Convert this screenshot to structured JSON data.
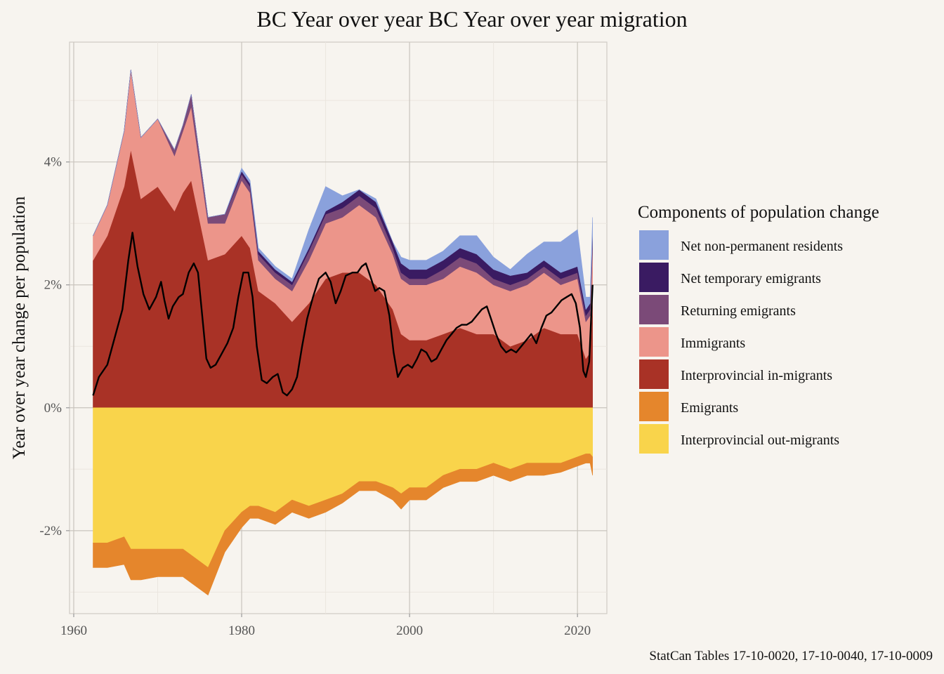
{
  "chart_data": {
    "type": "area",
    "title": "BC Year over year BC Year over year migration",
    "xlabel": "",
    "ylabel": "Year over year change per population",
    "caption": "StatCan Tables 17-10-0020, 17-10-0040, 17-10-0009",
    "x_ticks": [
      1960,
      1980,
      2000,
      2020
    ],
    "y_ticks": [
      {
        "value": -2,
        "label": "-2%"
      },
      {
        "value": 0,
        "label": "0%"
      },
      {
        "value": 2,
        "label": "2%"
      },
      {
        "value": 4,
        "label": "4%"
      }
    ],
    "xlim": [
      1959.5,
      2023.5
    ],
    "ylim": [
      -3.35,
      5.95
    ],
    "grid": true,
    "legend": {
      "title": "Components of population change",
      "position": "right"
    },
    "x": [
      1962.3,
      1964,
      1966,
      1966.8,
      1968,
      1970,
      1972,
      1973,
      1974,
      1976,
      1978,
      1980,
      1981,
      1982,
      1984,
      1986,
      1988,
      1990,
      1992,
      1994,
      1996,
      1998,
      1999,
      2000,
      2002,
      2004,
      2006,
      2008,
      2010,
      2012,
      2014,
      2016,
      2018,
      2020,
      2021,
      2021.5,
      2021.8
    ],
    "positive_series": [
      {
        "name": "Interprovincial in-migrants",
        "color": "#a93226",
        "values": [
          2.4,
          2.8,
          3.6,
          4.2,
          3.4,
          3.6,
          3.2,
          3.5,
          3.7,
          2.4,
          2.5,
          2.8,
          2.6,
          1.9,
          1.7,
          1.4,
          1.7,
          2.1,
          2.2,
          2.2,
          2.0,
          1.6,
          1.2,
          1.1,
          1.1,
          1.2,
          1.3,
          1.2,
          1.2,
          1.0,
          1.1,
          1.3,
          1.2,
          1.2,
          0.8,
          0.9,
          1.7
        ]
      },
      {
        "name": "Immigrants",
        "color": "#ec958a",
        "values": [
          0.4,
          0.5,
          0.9,
          1.3,
          1.0,
          1.1,
          0.9,
          1.0,
          1.2,
          0.6,
          0.5,
          0.9,
          0.9,
          0.5,
          0.4,
          0.5,
          0.7,
          0.9,
          0.9,
          1.1,
          1.1,
          0.9,
          0.9,
          0.9,
          0.9,
          0.9,
          1.0,
          1.0,
          0.8,
          0.9,
          0.9,
          0.9,
          0.8,
          0.9,
          0.6,
          0.6,
          0.9
        ]
      },
      {
        "name": "Returning emigrants",
        "color": "#7b4a78",
        "values": [
          0.0,
          0.0,
          0.0,
          0.0,
          0.0,
          0.0,
          0.1,
          0.1,
          0.2,
          0.1,
          0.15,
          0.1,
          0.1,
          0.1,
          0.1,
          0.1,
          0.15,
          0.15,
          0.15,
          0.15,
          0.15,
          0.1,
          0.1,
          0.1,
          0.1,
          0.15,
          0.15,
          0.15,
          0.1,
          0.1,
          0.1,
          0.1,
          0.1,
          0.1,
          0.1,
          0.1,
          0.1
        ]
      },
      {
        "name": "Net temporary emigrants",
        "color": "#3a1b62",
        "values": [
          0.0,
          0.0,
          0.0,
          0.0,
          0.0,
          0.0,
          0.0,
          0.0,
          0.0,
          0.0,
          0.0,
          0.05,
          0.05,
          0.05,
          0.05,
          0.05,
          0.05,
          0.05,
          0.1,
          0.1,
          0.1,
          0.1,
          0.15,
          0.15,
          0.15,
          0.15,
          0.15,
          0.15,
          0.15,
          0.15,
          0.1,
          0.1,
          0.1,
          0.1,
          0.1,
          0.1,
          0.1
        ]
      },
      {
        "name": "Net non-permanent residents",
        "color": "#8aa1dc",
        "values": [
          0.0,
          0.0,
          0.0,
          0.0,
          0.0,
          0.0,
          0.0,
          0.0,
          0.0,
          0.0,
          0.0,
          0.05,
          0.05,
          0.05,
          0.05,
          0.05,
          0.3,
          0.4,
          0.1,
          0.0,
          0.05,
          0.0,
          0.1,
          0.15,
          0.15,
          0.15,
          0.2,
          0.3,
          0.2,
          0.1,
          0.3,
          0.3,
          0.5,
          0.6,
          0.2,
          0.1,
          0.3
        ]
      }
    ],
    "negative_series": [
      {
        "name": "Interprovincial out-migrants",
        "color": "#f9d44b",
        "values": [
          -2.2,
          -2.2,
          -2.1,
          -2.3,
          -2.3,
          -2.3,
          -2.3,
          -2.3,
          -2.4,
          -2.6,
          -2.0,
          -1.7,
          -1.6,
          -1.6,
          -1.7,
          -1.5,
          -1.6,
          -1.5,
          -1.4,
          -1.2,
          -1.2,
          -1.3,
          -1.4,
          -1.3,
          -1.3,
          -1.1,
          -1.0,
          -1.0,
          -0.9,
          -1.0,
          -0.9,
          -0.9,
          -0.9,
          -0.8,
          -0.75,
          -0.75,
          -0.8
        ]
      },
      {
        "name": "Emigrants",
        "color": "#e5862c",
        "values": [
          -0.4,
          -0.4,
          -0.45,
          -0.5,
          -0.5,
          -0.45,
          -0.45,
          -0.45,
          -0.45,
          -0.45,
          -0.35,
          -0.25,
          -0.2,
          -0.2,
          -0.2,
          -0.2,
          -0.2,
          -0.2,
          -0.15,
          -0.15,
          -0.15,
          -0.2,
          -0.25,
          -0.2,
          -0.2,
          -0.2,
          -0.2,
          -0.2,
          -0.2,
          -0.2,
          -0.2,
          -0.2,
          -0.15,
          -0.15,
          -0.15,
          -0.15,
          -0.3
        ]
      }
    ],
    "net_line": {
      "color": "#000000",
      "x": [
        1962.3,
        1963,
        1964,
        1965,
        1965.8,
        1966.5,
        1967,
        1967.6,
        1968.3,
        1969,
        1969.8,
        1970.4,
        1970.8,
        1971.3,
        1971.8,
        1972.5,
        1973,
        1973.7,
        1974.3,
        1974.8,
        1975.3,
        1975.8,
        1976.3,
        1976.9,
        1977.5,
        1978.3,
        1979,
        1979.6,
        1980.2,
        1980.8,
        1981.3,
        1981.8,
        1982.4,
        1983,
        1983.7,
        1984.3,
        1984.9,
        1985.4,
        1986,
        1986.6,
        1987.2,
        1987.8,
        1988.5,
        1989.2,
        1990,
        1990.6,
        1991.2,
        1991.8,
        1992.4,
        1993.2,
        1993.8,
        1994.3,
        1994.8,
        1995.3,
        1995.9,
        1996.4,
        1997,
        1997.6,
        1998.1,
        1998.6,
        1999.2,
        1999.8,
        2000.3,
        2000.9,
        2001.4,
        2002,
        2002.6,
        2003.2,
        2003.8,
        2004.4,
        2005,
        2005.6,
        2006.2,
        2006.8,
        2007.4,
        2008,
        2008.6,
        2009.2,
        2009.7,
        2010.3,
        2010.9,
        2011.5,
        2012.1,
        2012.7,
        2013.3,
        2013.9,
        2014.5,
        2015.1,
        2015.7,
        2016.3,
        2016.9,
        2017.5,
        2018.1,
        2018.7,
        2019.3,
        2019.8,
        2020.3,
        2020.7,
        2021,
        2021.4,
        2021.8
      ],
      "y": [
        0.2,
        0.5,
        0.7,
        1.2,
        1.6,
        2.4,
        2.85,
        2.3,
        1.85,
        1.6,
        1.8,
        2.05,
        1.75,
        1.45,
        1.65,
        1.8,
        1.85,
        2.2,
        2.35,
        2.2,
        1.5,
        0.8,
        0.65,
        0.7,
        0.85,
        1.05,
        1.3,
        1.8,
        2.2,
        2.2,
        1.8,
        1.0,
        0.45,
        0.4,
        0.5,
        0.55,
        0.25,
        0.2,
        0.3,
        0.5,
        1.0,
        1.45,
        1.8,
        2.1,
        2.2,
        2.05,
        1.7,
        1.9,
        2.15,
        2.2,
        2.2,
        2.3,
        2.35,
        2.15,
        1.9,
        1.95,
        1.9,
        1.5,
        0.9,
        0.5,
        0.65,
        0.7,
        0.65,
        0.8,
        0.95,
        0.9,
        0.75,
        0.8,
        0.95,
        1.1,
        1.2,
        1.3,
        1.35,
        1.35,
        1.4,
        1.5,
        1.6,
        1.65,
        1.45,
        1.2,
        1.0,
        0.9,
        0.95,
        0.9,
        1.0,
        1.1,
        1.2,
        1.05,
        1.3,
        1.5,
        1.55,
        1.65,
        1.75,
        1.8,
        1.85,
        1.7,
        1.3,
        0.6,
        0.5,
        0.75,
        2.0
      ]
    }
  }
}
